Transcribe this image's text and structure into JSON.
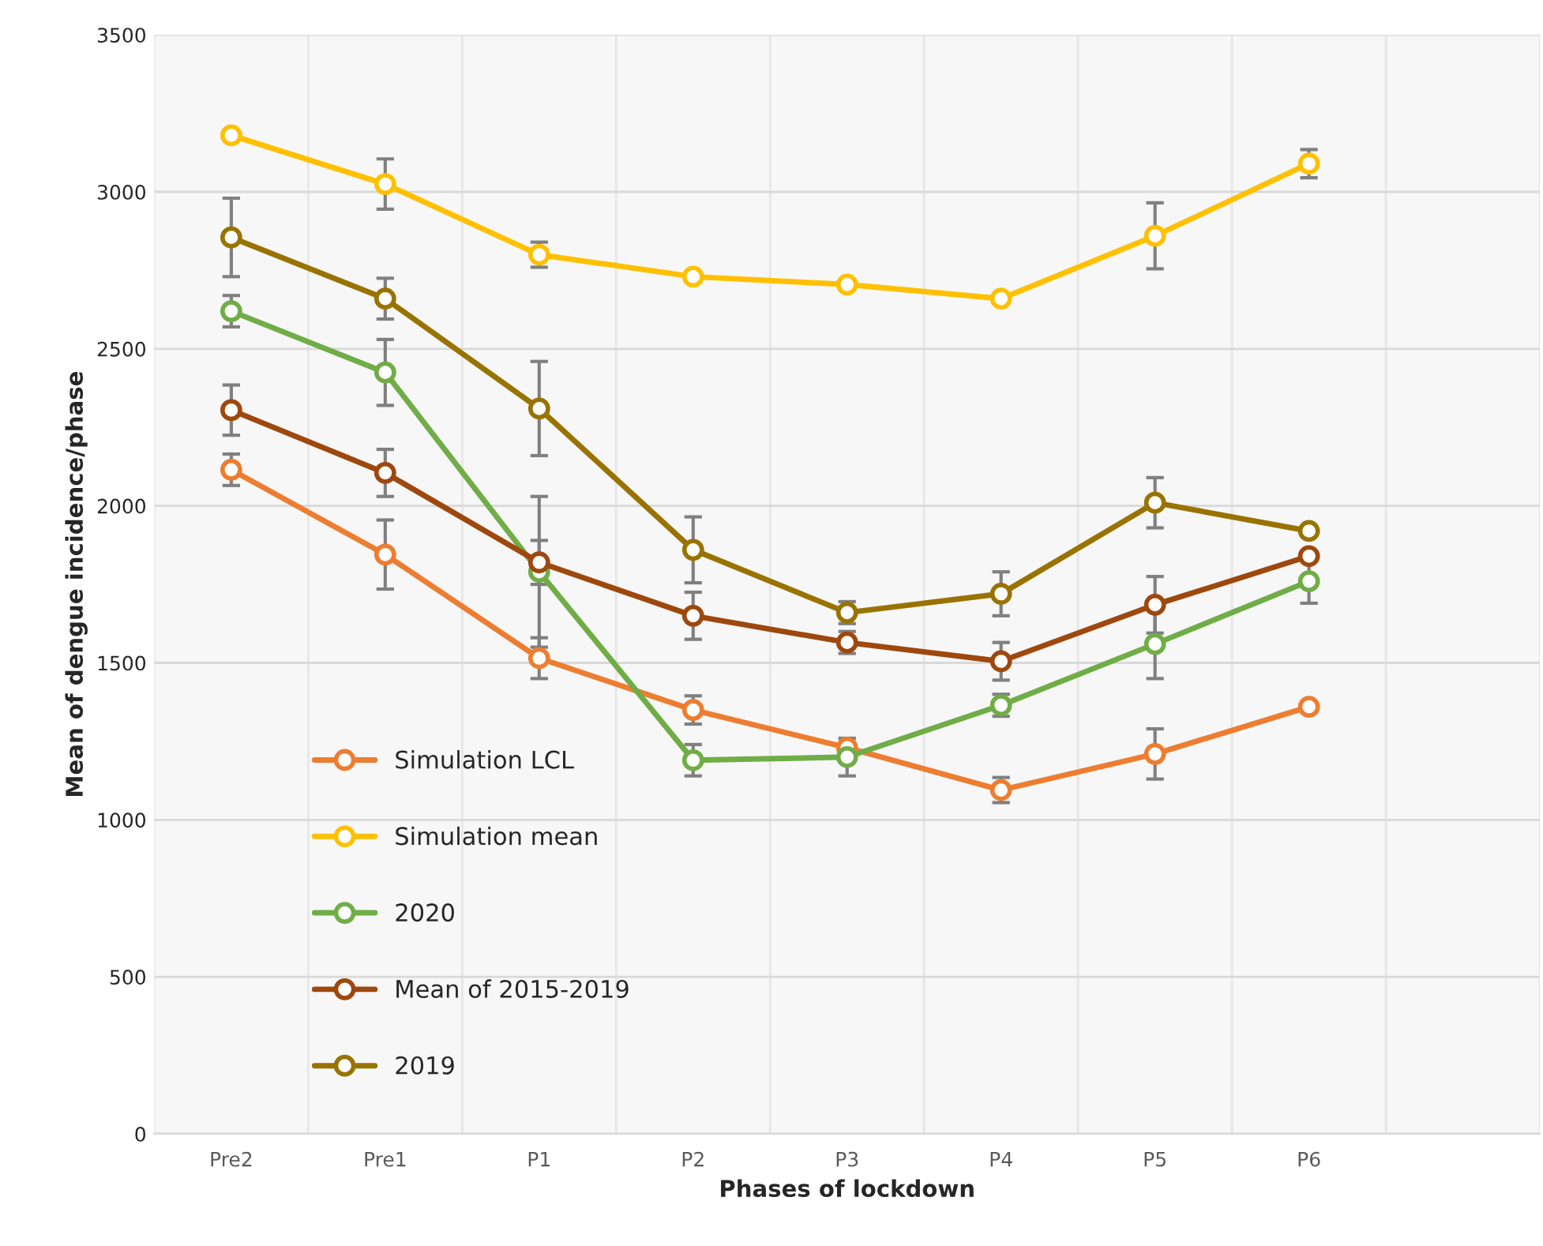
{
  "chart_data": {
    "type": "line",
    "xlabel": "Phases of lockdown",
    "ylabel": "Mean of dengue incidence/phase",
    "categories": [
      "Pre2",
      "Pre1",
      "P1",
      "P2",
      "P3",
      "P4",
      "P5",
      "P6",
      null
    ],
    "ylim": [
      0,
      3500
    ],
    "yticks": [
      0,
      500,
      1000,
      1500,
      2000,
      2500,
      3000,
      3500
    ],
    "grid": true,
    "legend": "bottom left",
    "marker": "circle",
    "line_style": "solid",
    "series": [
      {
        "name": "Simulation LCL",
        "color": "#ed7d31",
        "values": [
          2115,
          1845,
          1515,
          1350,
          1230,
          1095,
          1210,
          1360,
          null
        ],
        "errors": [
          50,
          110,
          65,
          45,
          null,
          40,
          80,
          null,
          null
        ]
      },
      {
        "name": "Simulation mean",
        "color": "#ffc000",
        "values": [
          3180,
          3025,
          2800,
          2730,
          2705,
          2660,
          2860,
          3090,
          null
        ],
        "errors": [
          null,
          80,
          40,
          null,
          null,
          null,
          105,
          45,
          null
        ]
      },
      {
        "name": "2020",
        "color": "#70ad47",
        "values": [
          2620,
          2425,
          1790,
          1190,
          1200,
          1365,
          1560,
          1760,
          null
        ],
        "errors": [
          50,
          105,
          240,
          50,
          60,
          35,
          110,
          70,
          null
        ]
      },
      {
        "name": "Mean of 2015-2019",
        "color": "#9e480e",
        "values": [
          2305,
          2105,
          1820,
          1650,
          1565,
          1505,
          1685,
          1840,
          null
        ],
        "errors": [
          80,
          75,
          70,
          75,
          35,
          60,
          90,
          null,
          null
        ]
      },
      {
        "name": "2019",
        "color": "#997300",
        "values": [
          2855,
          2660,
          2310,
          1860,
          1660,
          1720,
          2010,
          1920,
          null
        ],
        "errors": [
          125,
          65,
          150,
          105,
          35,
          70,
          80,
          null,
          null
        ]
      }
    ]
  }
}
